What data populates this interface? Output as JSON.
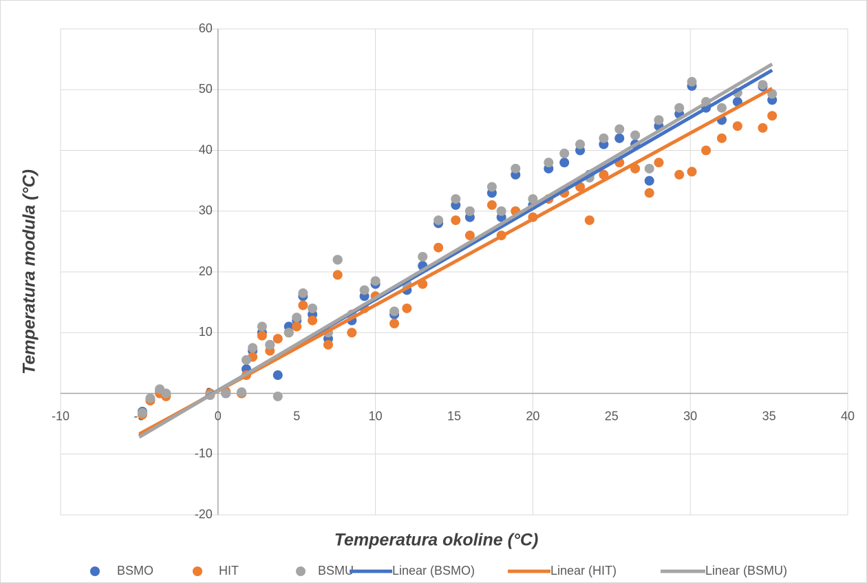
{
  "chart_data": {
    "type": "scatter",
    "xlabel": "Temperatura okoline (°C)",
    "ylabel": "Temperatura modula (°C)",
    "xlim": [
      -10,
      40
    ],
    "xticks": [
      -10,
      -5,
      0,
      5,
      10,
      15,
      20,
      25,
      30,
      35,
      40
    ],
    "xgrid": [
      -10,
      0,
      10,
      20,
      30,
      40
    ],
    "ylim": [
      -20,
      60
    ],
    "yticks": [
      -20,
      -10,
      0,
      10,
      20,
      30,
      40,
      50,
      60
    ],
    "grid": true,
    "legend": "bottom",
    "series": [
      {
        "name": "BSMO",
        "color": "#4472c4",
        "mode": "markers",
        "x": [
          -4.8,
          -4.3,
          -3.7,
          -3.3,
          -0.5,
          0.5,
          1.5,
          1.8,
          2.2,
          2.8,
          3.3,
          3.8,
          4.5,
          5.0,
          5.4,
          6.0,
          7.0,
          7.6,
          8.5,
          9.3,
          10.0,
          11.2,
          12.0,
          13.0,
          14.0,
          15.1,
          16.0,
          17.4,
          18.0,
          18.9,
          20.0,
          21.0,
          22.0,
          23.0,
          23.6,
          24.5,
          25.5,
          26.5,
          27.4,
          28.0,
          29.3,
          30.1,
          31.0,
          32.0,
          33.0,
          34.6,
          35.2
        ],
        "values": [
          -3,
          -1,
          0.5,
          -0.2,
          0,
          0,
          0,
          4,
          7,
          10,
          8,
          3,
          11,
          12,
          16,
          13,
          9,
          22,
          12,
          16,
          18,
          13,
          17,
          21,
          28,
          31,
          29,
          33,
          29,
          36,
          31,
          37,
          38,
          40,
          36,
          41,
          42,
          41,
          35,
          44,
          46,
          50.6,
          47,
          45,
          48,
          50.5,
          48.3
        ]
      },
      {
        "name": "HIT",
        "color": "#ed7d31",
        "mode": "markers",
        "x": [
          -4.8,
          -4.3,
          -3.7,
          -3.3,
          -0.5,
          0.5,
          1.5,
          1.8,
          2.2,
          2.8,
          3.3,
          3.8,
          4.5,
          5.0,
          5.4,
          6.0,
          7.0,
          7.6,
          8.5,
          9.3,
          10.0,
          11.2,
          12.0,
          13.0,
          14.0,
          15.1,
          16.0,
          17.4,
          18.0,
          18.9,
          20.0,
          21.0,
          22.0,
          23.0,
          23.6,
          24.5,
          25.5,
          26.5,
          27.4,
          28.0,
          29.3,
          30.1,
          31.0,
          32.0,
          33.0,
          34.6,
          35.2
        ],
        "values": [
          -3.5,
          -1.2,
          0,
          -0.5,
          0,
          0.3,
          0,
          3,
          6,
          9.5,
          7,
          9,
          10,
          11,
          14.5,
          12,
          8,
          19.5,
          10,
          14,
          16,
          11.5,
          14,
          18,
          24,
          28.5,
          26,
          31,
          26,
          30,
          29,
          32,
          33,
          34,
          28.5,
          36,
          38,
          37,
          33,
          38,
          36,
          36.5,
          40,
          42,
          44,
          43.7,
          45.7
        ]
      },
      {
        "name": "BSMU",
        "color": "#a5a5a5",
        "mode": "markers",
        "x": [
          -4.8,
          -4.3,
          -3.7,
          -3.3,
          -0.5,
          0.5,
          1.5,
          1.8,
          2.2,
          2.8,
          3.3,
          3.8,
          4.5,
          5.0,
          5.4,
          6.0,
          7.0,
          7.6,
          8.5,
          9.3,
          10.0,
          11.2,
          12.0,
          13.0,
          14.0,
          15.1,
          16.0,
          17.4,
          18.0,
          18.9,
          20.0,
          21.0,
          22.0,
          23.0,
          23.6,
          24.5,
          25.5,
          26.5,
          27.4,
          28.0,
          29.3,
          30.1,
          31.0,
          32.0,
          33.0,
          34.6,
          35.2
        ],
        "values": [
          -3.2,
          -0.8,
          0.7,
          0,
          -0.3,
          0,
          0.2,
          5.5,
          7.5,
          11,
          8,
          -0.5,
          10,
          12.5,
          16.5,
          14,
          10,
          22,
          13,
          17,
          18.5,
          13.5,
          18,
          22.5,
          28.5,
          32,
          30,
          34,
          30,
          37,
          32,
          38,
          39.5,
          41,
          35.5,
          42,
          43.5,
          42.5,
          37,
          45,
          47,
          51.3,
          48,
          47,
          49.5,
          50.8,
          49.3
        ]
      },
      {
        "name": "Linear (BSMO)",
        "color": "#4472c4",
        "mode": "line",
        "x": [
          -5,
          35.2
        ],
        "values": [
          -7,
          53.2
        ]
      },
      {
        "name": "Linear (HIT)",
        "color": "#ed7d31",
        "mode": "line",
        "x": [
          -5,
          35.2
        ],
        "values": [
          -6.7,
          50.2
        ]
      },
      {
        "name": "Linear (BSMU)",
        "color": "#a5a5a5",
        "mode": "line",
        "x": [
          -5,
          35.2
        ],
        "values": [
          -7.2,
          54.2
        ]
      }
    ]
  }
}
